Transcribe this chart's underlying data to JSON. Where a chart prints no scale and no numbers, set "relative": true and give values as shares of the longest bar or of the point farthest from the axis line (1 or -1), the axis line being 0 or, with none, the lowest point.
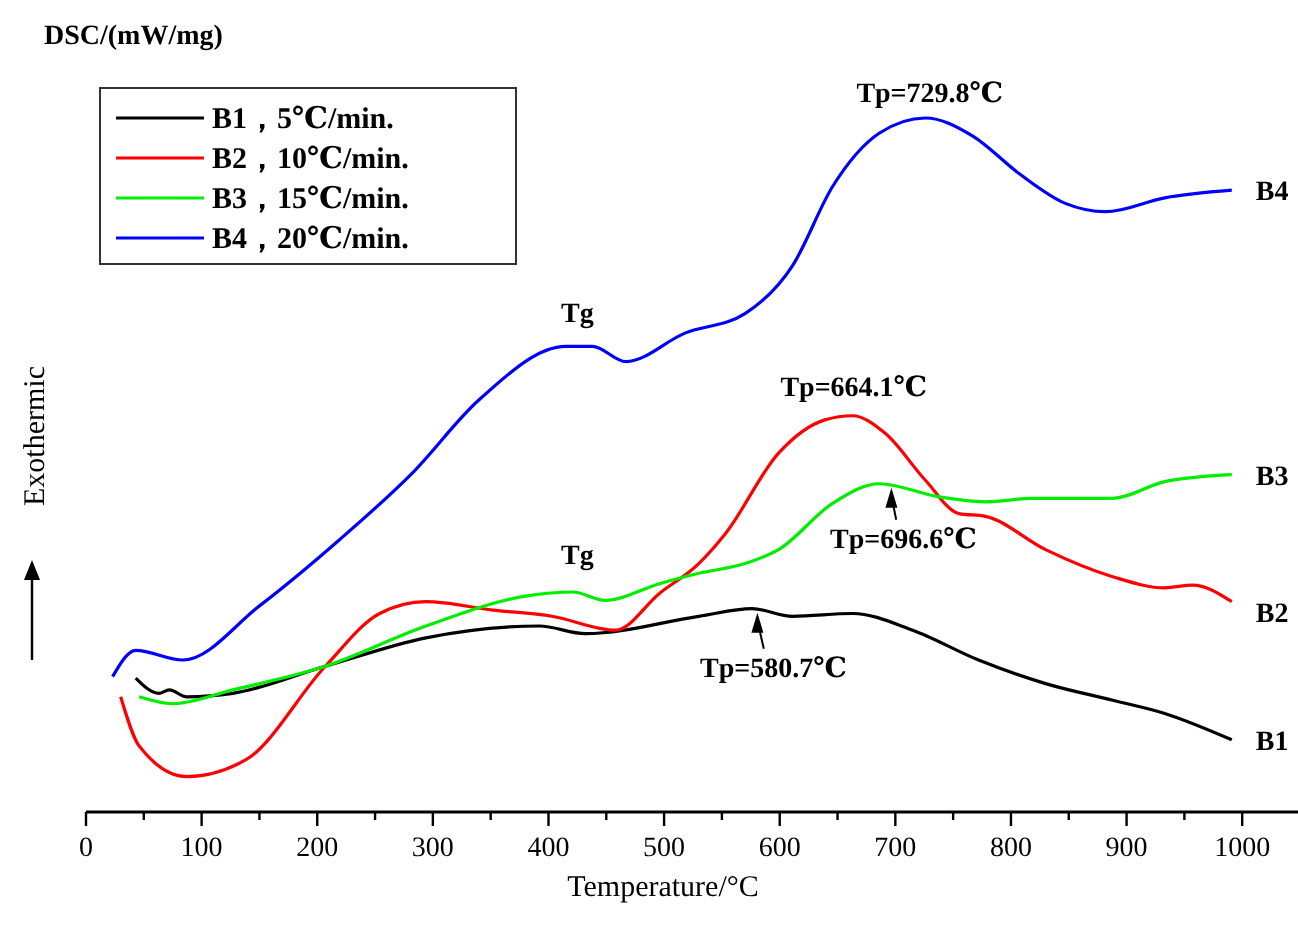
{
  "chart_data": {
    "type": "line",
    "title": "DSC/(mW/mg)",
    "xlabel": "Temperature/°C",
    "ylabel": "Exothermic",
    "relative": true,
    "xlim": [
      0,
      1050
    ],
    "xticks": [
      0,
      {
        "value": 50,
        "label": null
      },
      100,
      {
        "value": 150,
        "label": null
      },
      200,
      {
        "value": 250,
        "label": null
      },
      300,
      {
        "value": 350,
        "label": null
      },
      400,
      {
        "value": 450,
        "label": null
      },
      500,
      {
        "value": 550,
        "label": null
      },
      600,
      {
        "value": 650,
        "label": null
      },
      700,
      {
        "value": 750,
        "label": null
      },
      800,
      {
        "value": 850,
        "label": null
      },
      900,
      {
        "value": 950,
        "label": null
      },
      1000
    ],
    "legend": "top left",
    "grid": false,
    "marker": "none",
    "line_style": "solid",
    "series": [
      {
        "name": "B1，5℃/min.",
        "color": "#000000",
        "x": [
          43,
          63,
          72,
          87,
          127,
          207,
          294,
          392,
          432,
          530,
          576,
          611,
          663,
          715,
          772,
          830,
          888,
          933,
          991
        ],
        "values": [
          0.193,
          0.171,
          0.176,
          0.166,
          0.171,
          0.21,
          0.251,
          0.268,
          0.257,
          0.282,
          0.293,
          0.282,
          0.286,
          0.262,
          0.219,
          0.185,
          0.161,
          0.142,
          0.104
        ]
      },
      {
        "name": "B2，10℃/min.",
        "color": "#ff0000",
        "x": [
          30,
          46,
          87,
          138,
          207,
          254,
          294,
          352,
          403,
          458,
          496,
          530,
          553,
          599,
          639,
          663,
          691,
          726,
          755,
          778,
          830,
          888,
          933,
          957,
          991
        ],
        "values": [
          0.166,
          0.095,
          0.051,
          0.075,
          0.21,
          0.286,
          0.303,
          0.291,
          0.282,
          0.262,
          0.315,
          0.358,
          0.401,
          0.517,
          0.565,
          0.571,
          0.546,
          0.478,
          0.43,
          0.426,
          0.378,
          0.339,
          0.323,
          0.327,
          0.303
        ]
      },
      {
        "name": "B3，15℃/min.",
        "color": "#00ee00",
        "x": [
          46,
          75,
          127,
          207,
          294,
          380,
          421,
          449,
          496,
          530,
          570,
          599,
          646,
          686,
          738,
          778,
          819,
          888,
          933,
          991
        ],
        "values": [
          0.166,
          0.156,
          0.176,
          0.21,
          0.268,
          0.311,
          0.317,
          0.305,
          0.329,
          0.344,
          0.358,
          0.378,
          0.445,
          0.473,
          0.454,
          0.447,
          0.452,
          0.452,
          0.476,
          0.486
        ]
      },
      {
        "name": "B4，20℃/min.",
        "color": "#0000ff",
        "x": [
          23,
          43,
          84,
          150,
          219,
          282,
          340,
          415,
          438,
          467,
          518,
          570,
          611,
          646,
          686,
          726,
          767,
          807,
          847,
          882,
          933,
          991
        ],
        "values": [
          0.195,
          0.233,
          0.219,
          0.297,
          0.392,
          0.488,
          0.594,
          0.671,
          0.671,
          0.649,
          0.69,
          0.718,
          0.787,
          0.902,
          0.978,
          1,
          0.974,
          0.92,
          0.877,
          0.865,
          0.885,
          0.896
        ]
      }
    ],
    "annotations": [
      {
        "text": "Tp=729.8℃",
        "x": 729.8,
        "y": 1
      },
      {
        "text": "Tg",
        "x": 425,
        "y": 0.671
      },
      {
        "text": "Tp=664.1℃",
        "x": 664.1,
        "y": 0.571
      },
      {
        "text": "Tg",
        "x": 425,
        "y": 0.317
      },
      {
        "text": "Tp=696.6℃",
        "x": 696.6,
        "y": 0.473
      },
      {
        "text": "Tp=580.7℃",
        "x": 580.7,
        "y": 0.293
      },
      {
        "text": "B4",
        "x": 991,
        "y": 0.896
      },
      {
        "text": "B3",
        "x": 991,
        "y": 0.486
      },
      {
        "text": "B2",
        "x": 991,
        "y": 0.303
      },
      {
        "text": "B1",
        "x": 991,
        "y": 0.104
      }
    ]
  }
}
